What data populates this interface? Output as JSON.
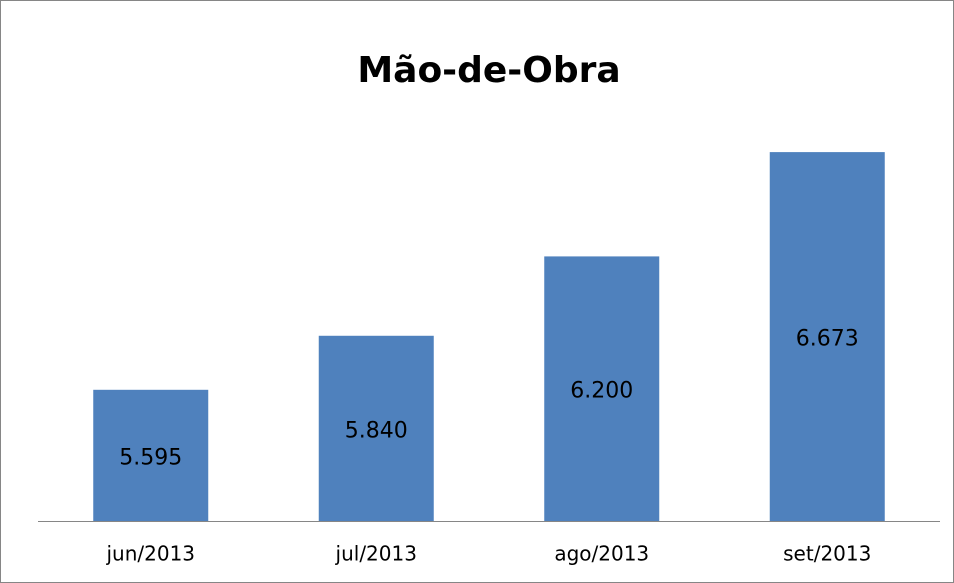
{
  "chart_data": {
    "type": "bar",
    "title": "Mão-de-Obra",
    "categories": [
      "jun/2013",
      "jul/2013",
      "ago/2013",
      "set/2013"
    ],
    "values": [
      5595,
      5840,
      6200,
      6673
    ],
    "value_labels": [
      "5.595",
      "5.840",
      "6.200",
      "6.673"
    ],
    "color": "#4f81bd",
    "ylim": [
      5000,
      7000
    ]
  }
}
